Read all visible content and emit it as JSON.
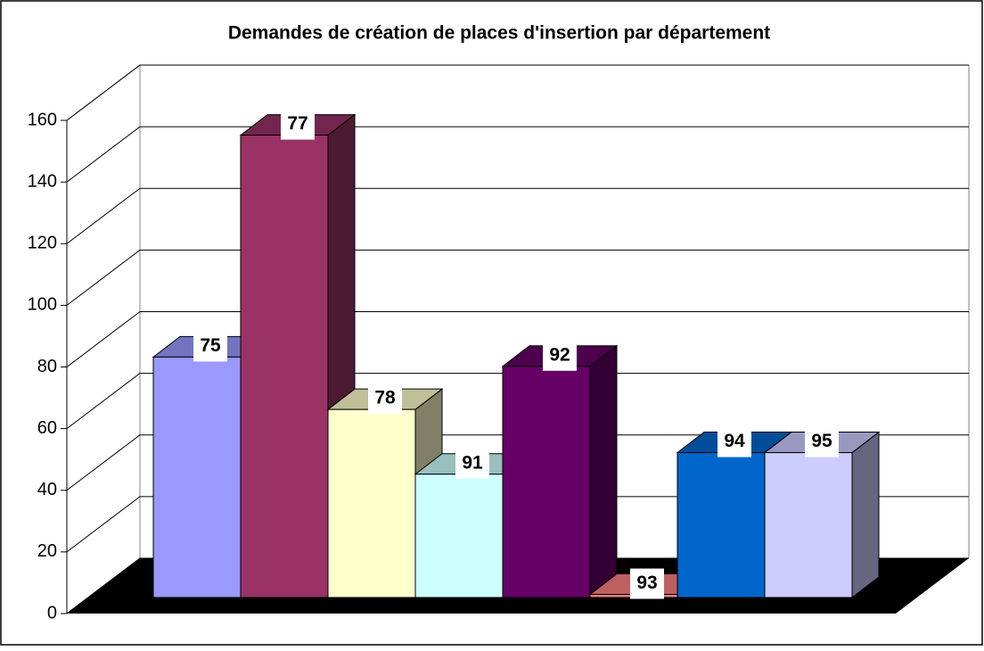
{
  "chart_data": {
    "type": "bar3d",
    "title": "Demandes de création de places d'insertion  par département",
    "categories": [
      "75",
      "77",
      "78",
      "91",
      "92",
      "93",
      "94",
      "95"
    ],
    "values": [
      78,
      150,
      61,
      40,
      75,
      1,
      47,
      47
    ],
    "colors": [
      "#9999ff",
      "#993366",
      "#ffffcc",
      "#ccffff",
      "#660066",
      "#ff8080",
      "#0066cc",
      "#ccccff"
    ],
    "ylim": [
      0,
      160
    ],
    "yticks": [
      0,
      20,
      40,
      60,
      80,
      100,
      120,
      140,
      160
    ],
    "grid": true
  }
}
